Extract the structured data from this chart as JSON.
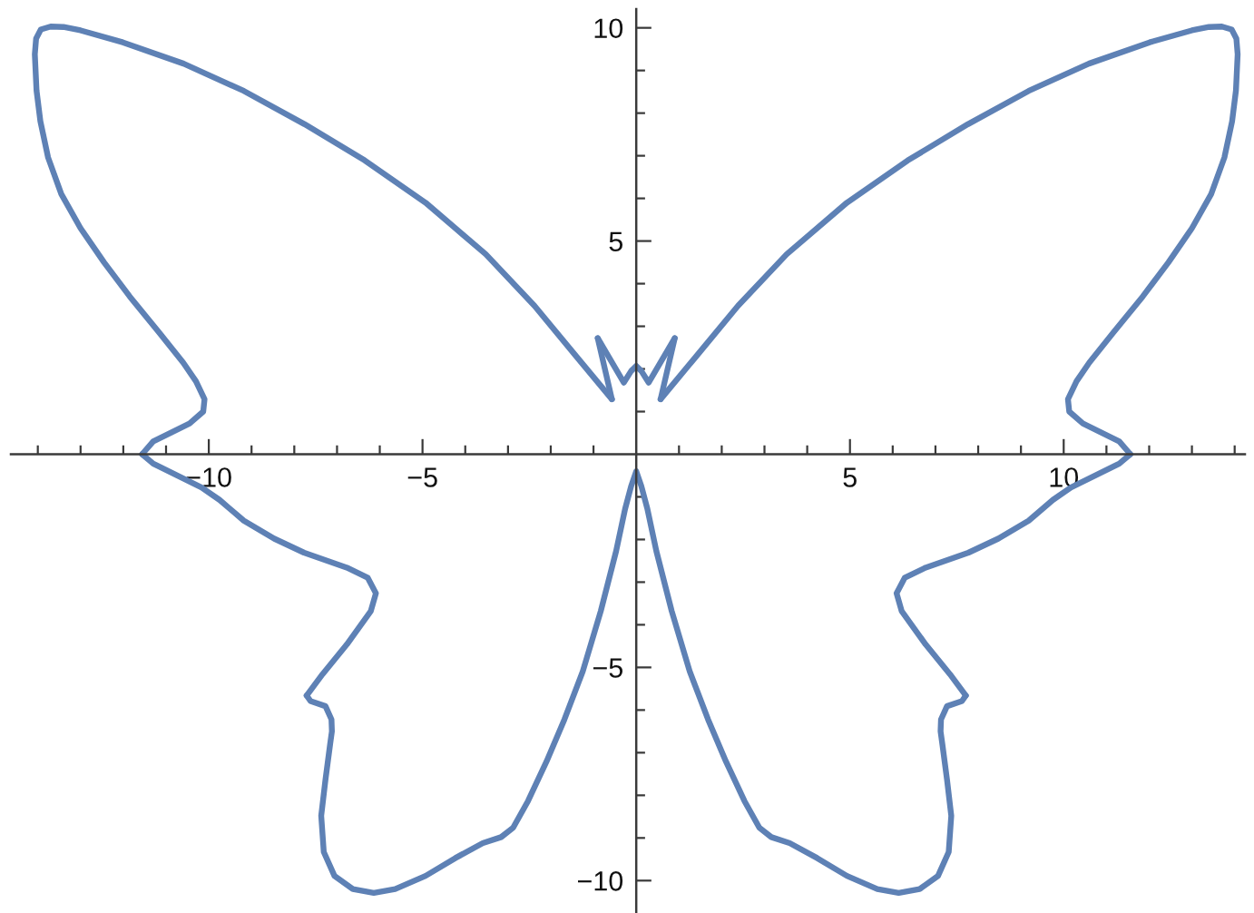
{
  "chart_data": {
    "type": "line",
    "xlim": [
      -14.63,
      14.24
    ],
    "ylim": [
      -10.76,
      10.44
    ],
    "xticks": [
      {
        "value": -14,
        "label": null
      },
      {
        "value": -13,
        "label": null
      },
      {
        "value": -12,
        "label": null
      },
      {
        "value": -11,
        "label": null
      },
      {
        "value": -10,
        "label": "−10"
      },
      {
        "value": -9,
        "label": null
      },
      {
        "value": -8,
        "label": null
      },
      {
        "value": -7,
        "label": null
      },
      {
        "value": -6,
        "label": null
      },
      {
        "value": -5,
        "label": "−5"
      },
      {
        "value": -4,
        "label": null
      },
      {
        "value": -3,
        "label": null
      },
      {
        "value": -2,
        "label": null
      },
      {
        "value": -1,
        "label": null
      },
      {
        "value": 1,
        "label": null
      },
      {
        "value": 2,
        "label": null
      },
      {
        "value": 3,
        "label": null
      },
      {
        "value": 4,
        "label": null
      },
      5,
      {
        "value": 6,
        "label": null
      },
      {
        "value": 7,
        "label": null
      },
      {
        "value": 8,
        "label": null
      },
      {
        "value": 9,
        "label": null
      },
      10,
      {
        "value": 11,
        "label": null
      },
      {
        "value": 12,
        "label": null
      },
      {
        "value": 13,
        "label": null
      },
      {
        "value": 14,
        "label": null
      }
    ],
    "yticks": [
      {
        "value": -10,
        "label": "−10"
      },
      {
        "value": -9,
        "label": null
      },
      {
        "value": -8,
        "label": null
      },
      {
        "value": -7,
        "label": null
      },
      {
        "value": -6,
        "label": null
      },
      {
        "value": -5,
        "label": "−5"
      },
      {
        "value": -4,
        "label": null
      },
      {
        "value": -3,
        "label": null
      },
      {
        "value": -2,
        "label": null
      },
      {
        "value": -1,
        "label": null
      },
      {
        "value": 1,
        "label": null
      },
      {
        "value": 2,
        "label": null
      },
      {
        "value": 3,
        "label": null
      },
      {
        "value": 4,
        "label": null
      },
      5,
      {
        "value": 6,
        "label": null
      },
      {
        "value": 7,
        "label": null
      },
      {
        "value": 8,
        "label": null
      },
      {
        "value": 9,
        "label": null
      },
      10
    ],
    "series": [
      {
        "color": "#5e81b5",
        "x": [
          -0.9,
          -0.29,
          -0.12,
          0,
          0.12,
          0.29,
          0.9
        ],
        "values": [
          2.72,
          1.68,
          1.95,
          2.07,
          1.95,
          1.68,
          2.72
        ]
      },
      {
        "color": "#5e81b5",
        "x": [
          0.9,
          0.57
        ],
        "values": [
          2.72,
          1.29
        ]
      },
      {
        "color": "#5e81b5",
        "x": [
          0.57,
          1.39,
          2.38,
          3.52,
          4.93,
          6.35,
          7.76,
          9.18,
          10.59,
          12.01,
          13.0,
          13.4,
          13.7,
          13.93,
          14.04,
          14.07,
          14.03,
          13.94,
          13.76,
          13.45,
          13.0,
          12.45,
          11.85,
          11.16,
          10.6,
          10.3,
          10.1,
          10.13,
          10.45,
          10.88,
          11.3,
          11.56
        ],
        "values": [
          1.29,
          2.28,
          3.48,
          4.69,
          5.9,
          6.89,
          7.74,
          8.52,
          9.16,
          9.66,
          9.94,
          10.02,
          10.03,
          9.96,
          9.75,
          9.38,
          8.53,
          7.81,
          6.96,
          6.1,
          5.3,
          4.5,
          3.7,
          2.85,
          2.15,
          1.71,
          1.29,
          1.0,
          0.72,
          0.51,
          0.3,
          0.0
        ]
      },
      {
        "color": "#5e81b5",
        "x": [
          11.56,
          11.3,
          10.74,
          10.17,
          9.75,
          9.18,
          8.47,
          7.77,
          6.77,
          6.28,
          6.09,
          6.21,
          6.77,
          7.34,
          7.71
        ],
        "values": [
          0.0,
          -0.22,
          -0.5,
          -0.78,
          -1.07,
          -1.56,
          -1.98,
          -2.31,
          -2.66,
          -2.9,
          -3.26,
          -3.68,
          -4.46,
          -5.16,
          -5.66
        ]
      },
      {
        "color": "#5e81b5",
        "x": [
          7.71,
          7.62,
          7.27,
          7.13,
          7.12,
          7.16,
          7.27,
          7.37,
          7.31,
          7.06,
          6.63,
          6.14,
          5.64,
          4.93,
          4.23,
          3.59,
          3.16,
          2.88,
          2.53,
          2.1,
          1.68,
          1.25,
          0.83,
          0.47,
          0.26,
          0.12,
          0,
          -0.12,
          -0.26,
          -0.47,
          -0.83,
          -1.25,
          -1.68,
          -2.1,
          -2.53,
          -2.88,
          -3.16,
          -3.59,
          -4.23,
          -4.93,
          -5.64,
          -6.14,
          -6.63,
          -7.06,
          -7.31,
          -7.37,
          -7.27,
          -7.16,
          -7.12,
          -7.13,
          -7.27,
          -7.62,
          -7.71
        ],
        "values": [
          -5.66,
          -5.79,
          -5.91,
          -6.22,
          -6.5,
          -6.79,
          -7.63,
          -8.48,
          -9.33,
          -9.89,
          -10.2,
          -10.29,
          -10.2,
          -9.89,
          -9.47,
          -9.12,
          -8.98,
          -8.76,
          -8.13,
          -7.21,
          -6.22,
          -5.09,
          -3.68,
          -2.27,
          -1.28,
          -0.75,
          -0.4,
          -0.75,
          -1.28,
          -2.27,
          -3.68,
          -5.09,
          -6.22,
          -7.21,
          -8.13,
          -8.76,
          -8.98,
          -9.12,
          -9.47,
          -9.89,
          -10.2,
          -10.29,
          -10.2,
          -9.89,
          -9.33,
          -8.48,
          -7.63,
          -6.79,
          -6.5,
          -6.22,
          -5.91,
          -5.79,
          -5.66
        ]
      },
      {
        "color": "#5e81b5",
        "x": [
          -7.71,
          -7.34,
          -6.77,
          -6.21,
          -6.09,
          -6.28,
          -6.77,
          -7.77,
          -8.47,
          -9.18,
          -9.75,
          -10.17,
          -10.74,
          -11.3,
          -11.56
        ],
        "values": [
          -5.66,
          -5.16,
          -4.46,
          -3.68,
          -3.26,
          -2.9,
          -2.66,
          -2.31,
          -1.98,
          -1.56,
          -1.07,
          -0.78,
          -0.5,
          -0.22,
          0.0
        ]
      },
      {
        "color": "#5e81b5",
        "x": [
          -11.56,
          -11.3,
          -10.88,
          -10.45,
          -10.13,
          -10.1,
          -10.3,
          -10.6,
          -11.16,
          -11.85,
          -12.45,
          -13.0,
          -13.45,
          -13.76,
          -13.94,
          -14.03,
          -14.07,
          -14.04,
          -13.93,
          -13.7,
          -13.4,
          -13.0,
          -12.01,
          -10.59,
          -9.18,
          -7.76,
          -6.35,
          -4.93,
          -3.52,
          -2.38,
          -1.39,
          -0.57
        ],
        "values": [
          0.0,
          0.3,
          0.51,
          0.72,
          1.0,
          1.29,
          1.71,
          2.15,
          2.85,
          3.7,
          4.5,
          5.3,
          6.1,
          6.96,
          7.81,
          8.53,
          9.38,
          9.75,
          9.96,
          10.03,
          10.02,
          9.94,
          9.66,
          9.16,
          8.52,
          7.74,
          6.89,
          5.9,
          4.69,
          3.48,
          2.28,
          1.29
        ]
      },
      {
        "color": "#5e81b5",
        "x": [
          -0.57,
          -0.9
        ],
        "values": [
          1.29,
          2.72
        ]
      }
    ]
  }
}
